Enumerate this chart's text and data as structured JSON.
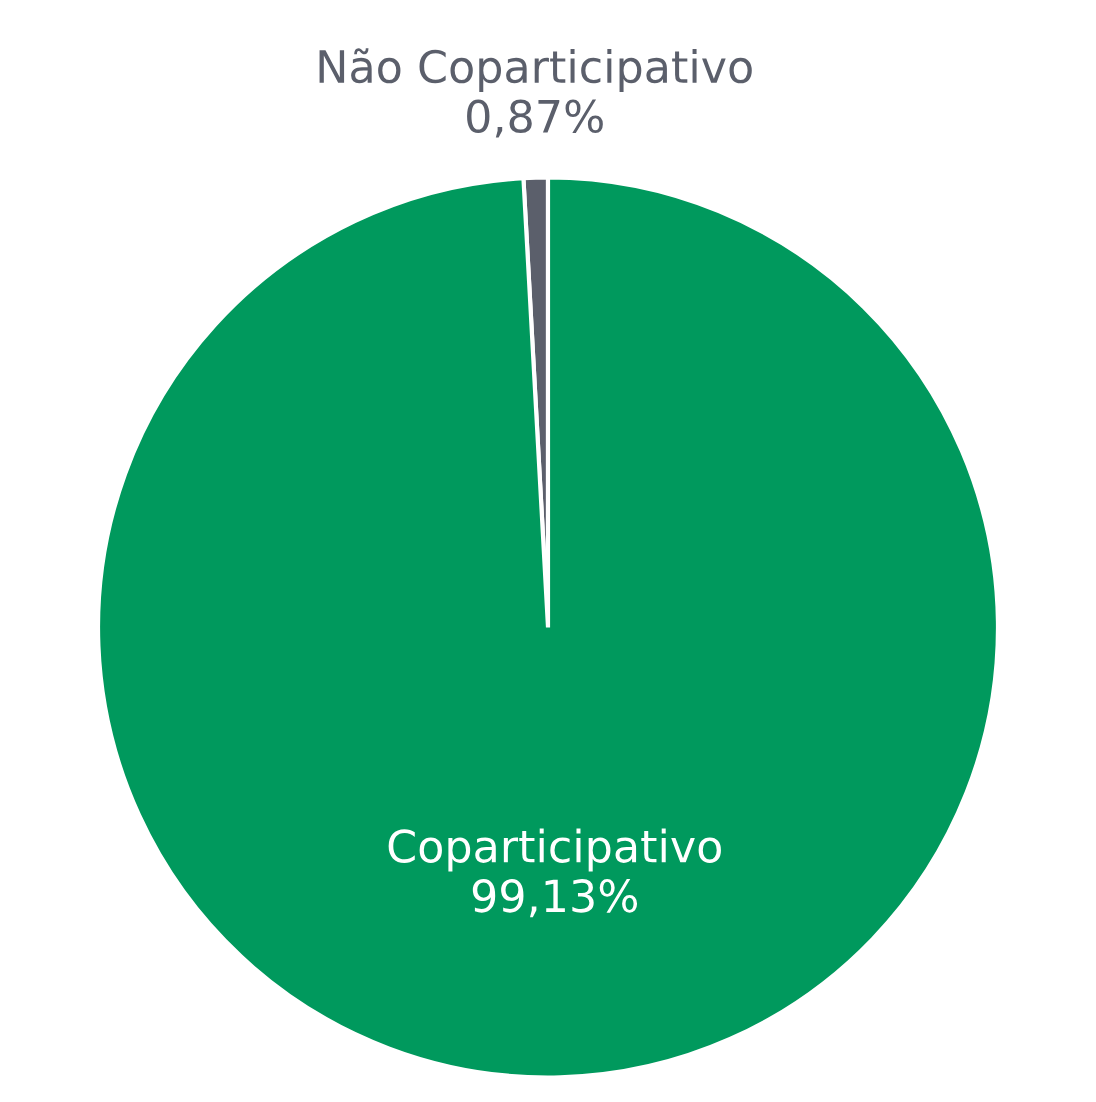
{
  "chart_data": {
    "type": "pie",
    "categories": [
      "Não Coparticipativo",
      "Coparticipativo"
    ],
    "values": [
      0.87,
      99.13
    ],
    "colors": [
      "#5b5f6b",
      "#00995d"
    ],
    "value_labels": [
      "0,87%",
      "99,13%"
    ]
  }
}
